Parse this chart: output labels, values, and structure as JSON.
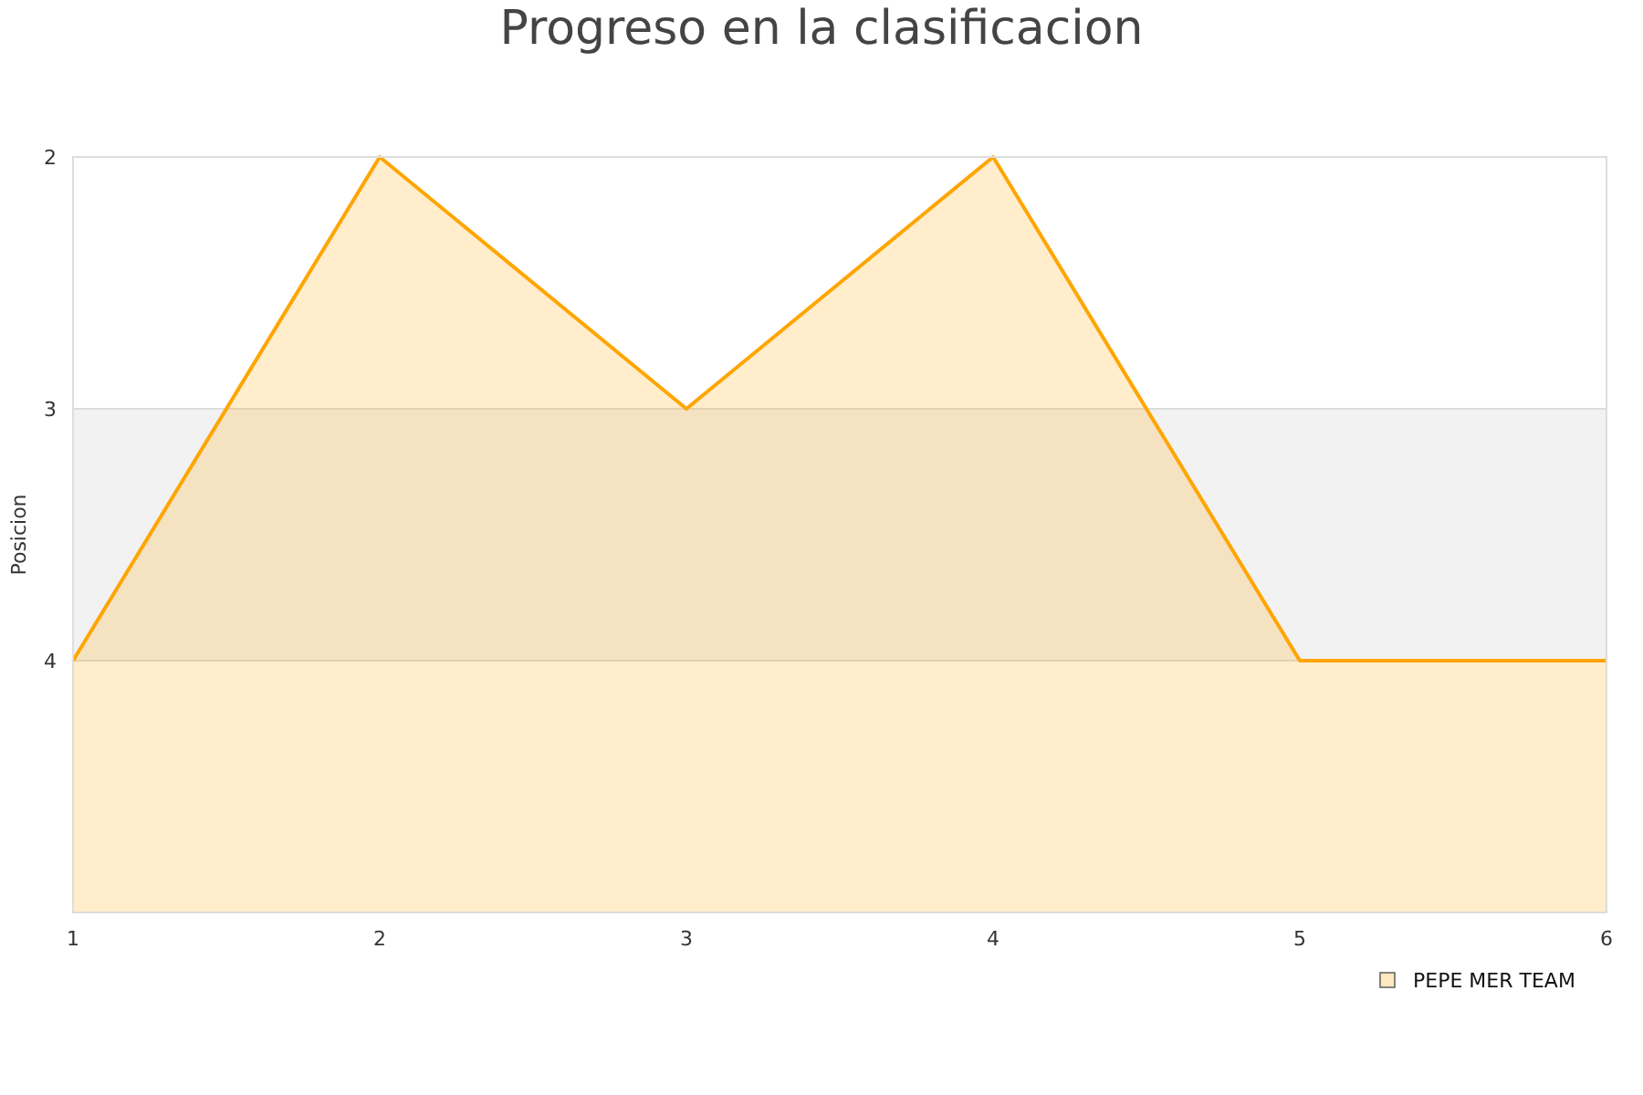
{
  "chart_data": {
    "type": "line",
    "title": "Progreso en la clasificacion",
    "ylabel": "Posicion",
    "x": [
      1,
      2,
      3,
      4,
      5,
      6
    ],
    "series": [
      {
        "name": "PEPE MER TEAM",
        "color": "#ffa500",
        "values": [
          4,
          2,
          3,
          2,
          4,
          4
        ],
        "lower": [
          4,
          2,
          3,
          2,
          4,
          4
        ],
        "upper": [
          5,
          5,
          5,
          5,
          5,
          5
        ]
      }
    ],
    "xlim": [
      1,
      6
    ],
    "xticks": [
      1,
      2,
      3,
      4,
      5,
      6
    ],
    "ylim": [
      5,
      2
    ],
    "yticks": [
      2,
      3,
      4
    ],
    "grid": "y",
    "bands": [
      {
        "axis": "y",
        "from": 3,
        "to": 4,
        "color": "#f2f2f2"
      }
    ],
    "legend": "bottom right"
  }
}
